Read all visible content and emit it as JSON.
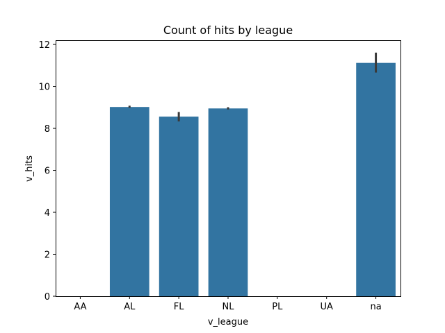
{
  "chart_data": {
    "type": "bar",
    "title": "Count of hits by league",
    "xlabel": "v_league",
    "ylabel": "v_hits",
    "categories": [
      "AA",
      "AL",
      "FL",
      "NL",
      "PL",
      "UA",
      "na"
    ],
    "values": [
      null,
      9.02,
      8.56,
      8.95,
      null,
      null,
      11.12
    ],
    "error_low": [
      null,
      8.98,
      8.33,
      8.9,
      null,
      null,
      10.66
    ],
    "error_high": [
      null,
      9.08,
      8.78,
      9.01,
      null,
      null,
      11.61
    ],
    "ylim": [
      0,
      12.2
    ],
    "yticks": [
      0,
      2,
      4,
      6,
      8,
      10,
      12
    ],
    "grid": false,
    "bar_color": "#3274a1",
    "error_color": "#3a3a3a"
  }
}
